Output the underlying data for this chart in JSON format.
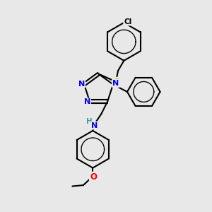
{
  "bg_color": "#e8e8e8",
  "atom_colors": {
    "N": "#0000ff",
    "S": "#b8b800",
    "O": "#ff0000",
    "Cl": "#000000",
    "C": "#000000",
    "H": "#4a9a9a"
  },
  "bond_color": "#000000",
  "bond_width": 1.5,
  "fig_width": 3.0,
  "fig_height": 3.0,
  "dpi": 100,
  "xlim": [
    0,
    10
  ],
  "ylim": [
    0,
    10
  ]
}
